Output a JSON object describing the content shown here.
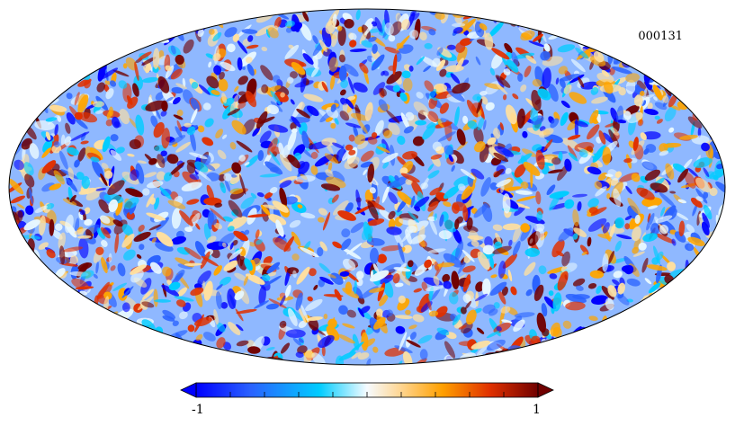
{
  "map": {
    "id_label": "000131",
    "projection": "mollweide",
    "colormap": [
      "#0000ff",
      "#2a62ff",
      "#00ccff",
      "#e8f8ff",
      "#ffe0a0",
      "#ffa500",
      "#e03000",
      "#700000"
    ]
  },
  "colorbar": {
    "min_label": "-1",
    "max_label": "1",
    "ticks": 11
  }
}
